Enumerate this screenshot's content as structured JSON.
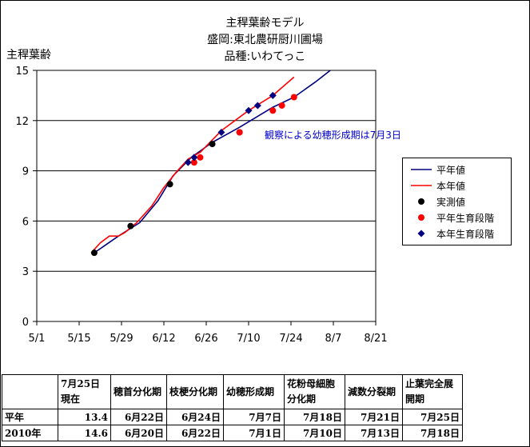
{
  "chart_data": {
    "type": "line",
    "title_lines": [
      "主稈葉齢モデル",
      "盛岡:東北農研厨川圃場",
      "品種:いわてっこ"
    ],
    "ylabel": "主稈葉齢",
    "ylim": [
      0,
      15
    ],
    "yticks": [
      0,
      3,
      6,
      9,
      12,
      15
    ],
    "x_axis": {
      "tick_labels": [
        "5/1",
        "5/15",
        "5/29",
        "6/12",
        "6/26",
        "7/10",
        "7/24",
        "8/7",
        "8/21"
      ],
      "xlim": [
        "5/1",
        "8/21"
      ]
    },
    "grid": "horizontal",
    "legend_position": "right",
    "annotation": "観察による幼穂形成期は7月3日",
    "series": [
      {
        "name": "平年値",
        "kind": "line",
        "color": "#000080",
        "points": [
          [
            "5/20",
            4.1
          ],
          [
            "5/28",
            5.1
          ],
          [
            "6/4",
            5.9
          ],
          [
            "6/10",
            7.2
          ],
          [
            "6/15",
            8.7
          ],
          [
            "6/21",
            9.8
          ],
          [
            "6/28",
            10.7
          ],
          [
            "7/7",
            11.6
          ],
          [
            "7/18",
            12.8
          ],
          [
            "7/25",
            13.4
          ],
          [
            "8/1",
            14.3
          ],
          [
            "8/6",
            15.0
          ]
        ]
      },
      {
        "name": "本年値",
        "kind": "line",
        "color": "#ff0000",
        "points": [
          [
            "5/19",
            4.1
          ],
          [
            "5/22",
            4.7
          ],
          [
            "5/25",
            5.1
          ],
          [
            "5/28",
            5.1
          ],
          [
            "5/30",
            5.3
          ],
          [
            "6/3",
            5.9
          ],
          [
            "6/8",
            6.9
          ],
          [
            "6/12",
            8.0
          ],
          [
            "6/16",
            8.9
          ],
          [
            "6/20",
            9.7
          ],
          [
            "6/24",
            10.1
          ],
          [
            "7/1",
            11.4
          ],
          [
            "7/10",
            12.6
          ],
          [
            "7/18",
            13.5
          ],
          [
            "7/25",
            14.6
          ]
        ]
      },
      {
        "name": "実測値",
        "kind": "marker",
        "color": "#000000",
        "points": [
          [
            "5/20",
            4.1
          ],
          [
            "6/1",
            5.7
          ],
          [
            "6/14",
            8.2
          ],
          [
            "6/28",
            10.6
          ],
          [
            "7/7",
            11.3
          ]
        ]
      },
      {
        "name": "平年生育段階",
        "kind": "marker",
        "color": "#ff0000",
        "points": [
          [
            "6/22",
            9.5
          ],
          [
            "6/24",
            9.8
          ],
          [
            "7/7",
            11.3
          ],
          [
            "7/18",
            12.6
          ],
          [
            "7/21",
            12.9
          ],
          [
            "7/25",
            13.4
          ]
        ]
      },
      {
        "name": "本年生育段階",
        "kind": "marker",
        "color": "#000080",
        "points": [
          [
            "6/20",
            9.5
          ],
          [
            "6/22",
            9.8
          ],
          [
            "7/1",
            11.3
          ],
          [
            "7/10",
            12.6
          ],
          [
            "7/13",
            12.9
          ],
          [
            "7/18",
            13.5
          ]
        ]
      }
    ]
  },
  "table": {
    "headers": [
      "",
      "7月25日現在",
      "穂首分化期",
      "枝梗分化期",
      "幼穂形成期",
      "花粉母細胞分化期",
      "減数分裂期",
      "止葉完全展開期"
    ],
    "rows": [
      [
        "平年",
        "13.4",
        "6月22日",
        "6月24日",
        "7月7日",
        "7月18日",
        "7月21日",
        "7月25日"
      ],
      [
        "2010年",
        "14.6",
        "6月20日",
        "6月22日",
        "7月1日",
        "7月10日",
        "7月13日",
        "7月18日"
      ]
    ]
  }
}
